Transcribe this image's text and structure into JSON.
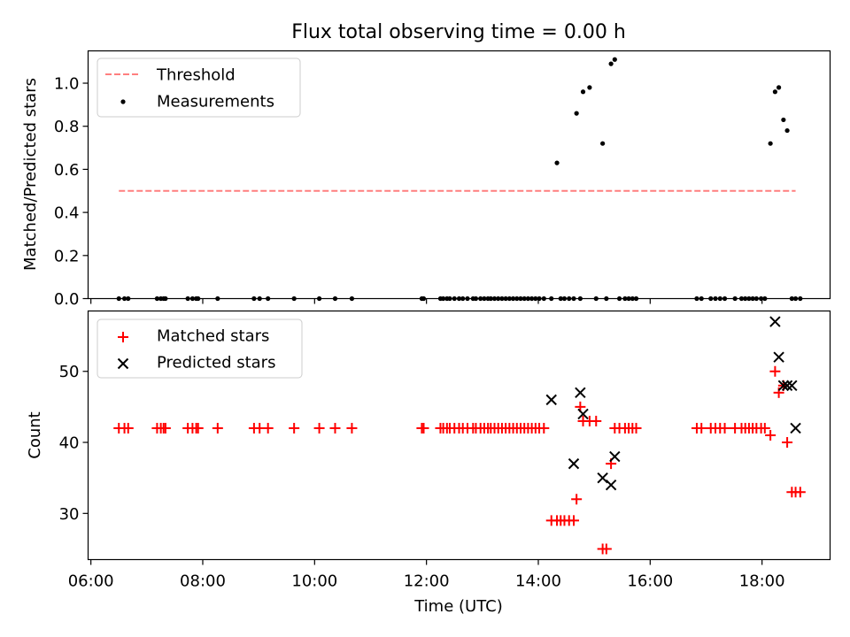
{
  "colors": {
    "threshold": "#ff7f7f",
    "measurement": "#000000",
    "matched": "#ff0000",
    "predicted": "#000000"
  },
  "chart_data": [
    {
      "type": "scatter",
      "title": "Flux total observing time = 0.00 h",
      "xlabel": "",
      "ylabel": "Matched/Predicted stars",
      "xlim": [
        "05:57",
        "19:13"
      ],
      "ylim": [
        0,
        1.15
      ],
      "yticks": [
        0.0,
        0.2,
        0.4,
        0.6,
        0.8,
        1.0
      ],
      "ytick_labels": [
        "0.0",
        "0.2",
        "0.4",
        "0.6",
        "0.8",
        "1.0"
      ],
      "legend": "top-left",
      "legend_entries": [
        "Threshold",
        "Measurements"
      ],
      "series": [
        {
          "name": "Threshold",
          "style": "dashed-line",
          "x": [
            "06:30",
            "18:36"
          ],
          "y": [
            0.5,
            0.5
          ]
        },
        {
          "name": "Measurements",
          "style": "dots",
          "x": [
            "06:30",
            "06:36",
            "06:40",
            "07:11",
            "07:15",
            "07:18",
            "07:20",
            "07:44",
            "07:49",
            "07:53",
            "07:55",
            "08:16",
            "08:55",
            "09:01",
            "09:10",
            "09:38",
            "10:05",
            "10:22",
            "10:40",
            "11:55",
            "11:57",
            "12:15",
            "12:18",
            "12:22",
            "12:25",
            "12:30",
            "12:35",
            "12:39",
            "12:44",
            "12:50",
            "12:53",
            "12:58",
            "13:02",
            "13:06",
            "13:09",
            "13:13",
            "13:17",
            "13:21",
            "13:25",
            "13:29",
            "13:33",
            "13:37",
            "13:41",
            "13:45",
            "13:49",
            "13:53",
            "13:57",
            "14:01",
            "14:06",
            "14:14",
            "14:20",
            "14:24",
            "14:28",
            "14:33",
            "14:38",
            "14:41",
            "14:45",
            "14:48",
            "14:55",
            "15:02",
            "15:09",
            "15:13",
            "15:18",
            "15:22",
            "15:27",
            "15:33",
            "15:37",
            "15:41",
            "15:45",
            "16:50",
            "16:55",
            "17:05",
            "17:10",
            "17:15",
            "17:20",
            "17:31",
            "17:38",
            "17:42",
            "17:46",
            "17:50",
            "17:54",
            "17:59",
            "18:03",
            "18:09",
            "18:14",
            "18:18",
            "18:23",
            "18:27",
            "18:32",
            "18:36",
            "18:41"
          ],
          "y": [
            0,
            0,
            0,
            0,
            0,
            0,
            0,
            0,
            0,
            0,
            0,
            0,
            0,
            0,
            0,
            0,
            0,
            0,
            0,
            0,
            0,
            0,
            0,
            0,
            0,
            0,
            0,
            0,
            0,
            0,
            0,
            0,
            0,
            0,
            0,
            0,
            0,
            0,
            0,
            0,
            0,
            0,
            0,
            0,
            0,
            0,
            0,
            0,
            0,
            0,
            0.63,
            0,
            0,
            0,
            0,
            0.86,
            0,
            0.96,
            0.98,
            0,
            0.72,
            0,
            1.09,
            1.11,
            0,
            0,
            0,
            0,
            0,
            0,
            0,
            0,
            0,
            0,
            0,
            0,
            0,
            0,
            0,
            0,
            0,
            0,
            0,
            0.72,
            0.96,
            0.98,
            0.83,
            0.78,
            0,
            0,
            0
          ]
        }
      ]
    },
    {
      "type": "scatter",
      "title": "",
      "xlabel": "Time (UTC)",
      "ylabel": "Count",
      "xlim": [
        "05:57",
        "19:13"
      ],
      "ylim": [
        23.5,
        58.5
      ],
      "yticks": [
        30,
        40,
        50
      ],
      "ytick_labels": [
        "30",
        "40",
        "50"
      ],
      "xticks": [
        "06:00",
        "08:00",
        "10:00",
        "12:00",
        "14:00",
        "16:00",
        "18:00"
      ],
      "legend": "top-left",
      "legend_entries": [
        "Matched stars",
        "Predicted stars"
      ],
      "series": [
        {
          "name": "Matched stars",
          "style": "plus",
          "x": [
            "06:30",
            "06:36",
            "06:40",
            "07:11",
            "07:15",
            "07:18",
            "07:20",
            "07:44",
            "07:49",
            "07:53",
            "07:55",
            "08:16",
            "08:55",
            "09:01",
            "09:10",
            "09:38",
            "10:05",
            "10:22",
            "10:40",
            "11:55",
            "11:57",
            "12:15",
            "12:18",
            "12:22",
            "12:25",
            "12:30",
            "12:35",
            "12:39",
            "12:44",
            "12:50",
            "12:53",
            "12:58",
            "13:02",
            "13:06",
            "13:09",
            "13:13",
            "13:17",
            "13:21",
            "13:25",
            "13:29",
            "13:33",
            "13:37",
            "13:41",
            "13:45",
            "13:49",
            "13:53",
            "13:57",
            "14:01",
            "14:06",
            "14:14",
            "14:20",
            "14:24",
            "14:28",
            "14:33",
            "14:38",
            "14:41",
            "14:45",
            "14:48",
            "14:55",
            "15:02",
            "15:09",
            "15:13",
            "15:18",
            "15:22",
            "15:27",
            "15:33",
            "15:37",
            "15:41",
            "15:45",
            "16:50",
            "16:55",
            "17:05",
            "17:10",
            "17:15",
            "17:20",
            "17:31",
            "17:38",
            "17:42",
            "17:46",
            "17:50",
            "17:54",
            "17:59",
            "18:03",
            "18:09",
            "18:14",
            "18:18",
            "18:23",
            "18:27",
            "18:32",
            "18:36",
            "18:41"
          ],
          "y": [
            42,
            42,
            42,
            42,
            42,
            42,
            42,
            42,
            42,
            42,
            42,
            42,
            42,
            42,
            42,
            42,
            42,
            42,
            42,
            42,
            42,
            42,
            42,
            42,
            42,
            42,
            42,
            42,
            42,
            42,
            42,
            42,
            42,
            42,
            42,
            42,
            42,
            42,
            42,
            42,
            42,
            42,
            42,
            42,
            42,
            42,
            42,
            42,
            42,
            29,
            29,
            29,
            29,
            29,
            29,
            32,
            45,
            43,
            43,
            43,
            25,
            25,
            37,
            42,
            42,
            42,
            42,
            42,
            42,
            42,
            42,
            42,
            42,
            42,
            42,
            42,
            42,
            42,
            42,
            42,
            42,
            42,
            42,
            41,
            50,
            47,
            48,
            40,
            33,
            33,
            33
          ]
        },
        {
          "name": "Predicted stars",
          "style": "x",
          "x": [
            "14:14",
            "14:38",
            "14:45",
            "14:48",
            "15:09",
            "15:18",
            "15:22",
            "18:14",
            "18:18",
            "18:23",
            "18:27",
            "18:32",
            "18:36"
          ],
          "y": [
            46,
            37,
            47,
            44,
            35,
            34,
            38,
            57,
            52,
            48,
            48,
            48,
            42
          ]
        }
      ]
    }
  ]
}
